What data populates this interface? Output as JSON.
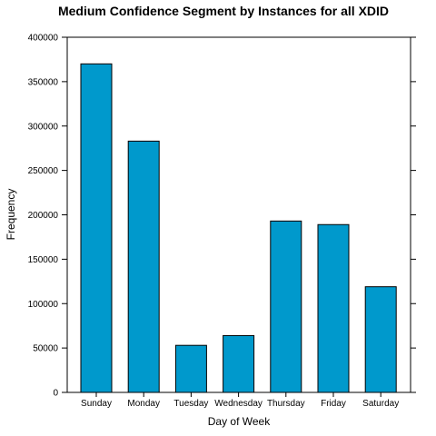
{
  "chart_data": {
    "type": "bar",
    "title": "Medium Confidence Segment by Instances for all XDID",
    "xlabel": "Day of Week",
    "ylabel": "Frequency",
    "categories": [
      "Sunday",
      "Monday",
      "Tuesday",
      "Wednesday",
      "Thursday",
      "Friday",
      "Saturday"
    ],
    "values": [
      370000,
      283000,
      53000,
      64000,
      193000,
      189000,
      119000
    ],
    "ylim": [
      0,
      400000
    ],
    "yticks": [
      0,
      50000,
      100000,
      150000,
      200000,
      250000,
      300000,
      350000,
      400000
    ],
    "ytick_labels": [
      "0",
      "50000",
      "100000",
      "150000",
      "200000",
      "250000",
      "300000",
      "350000",
      "400000"
    ],
    "bar_color": "#0099cc",
    "grid": false,
    "legend": "none"
  }
}
